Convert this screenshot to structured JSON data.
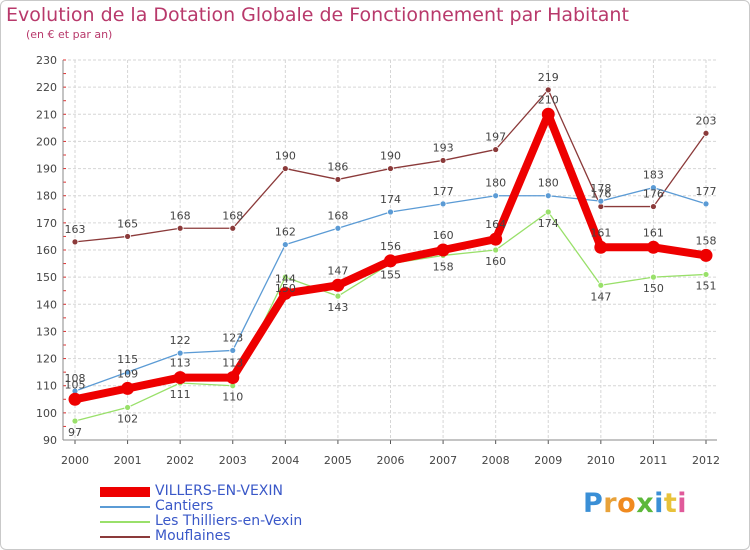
{
  "chart_data": {
    "type": "line",
    "title": "Evolution de la Dotation Globale de Fonctionnement par Habitant",
    "subtitle": "(en € et par an)",
    "xlabel": "",
    "ylabel": "",
    "categories": [
      "2000",
      "2001",
      "2002",
      "2003",
      "2004",
      "2005",
      "2006",
      "2007",
      "2008",
      "2009",
      "2010",
      "2011",
      "2012"
    ],
    "ylim": [
      90,
      230
    ],
    "yticks": [
      90,
      100,
      110,
      120,
      130,
      140,
      150,
      160,
      170,
      180,
      190,
      200,
      210,
      220,
      230
    ],
    "grid": true,
    "legend_position": "bottom-left",
    "series": [
      {
        "name": "VILLERS-EN-VEXIN",
        "color": "#ee0000",
        "values": [
          105,
          109,
          113,
          113,
          144,
          147,
          156,
          160,
          164,
          210,
          161,
          161,
          158
        ],
        "labels": [
          "105",
          "109",
          "113",
          "113",
          "144",
          "147",
          "156",
          "160",
          "164",
          "210",
          "161",
          "161",
          "158"
        ]
      },
      {
        "name": "Cantiers",
        "color": "#5b9bd5",
        "values": [
          108,
          115,
          122,
          123,
          162,
          168,
          174,
          177,
          180,
          180,
          178,
          183,
          177
        ],
        "labels": [
          "108",
          "115",
          "122",
          "123",
          "162",
          "168",
          "174",
          "177",
          "180",
          "180",
          "178",
          "183",
          "177"
        ]
      },
      {
        "name": "Les Thilliers-en-Vexin",
        "color": "#99e06a",
        "values": [
          97,
          102,
          111,
          110,
          150,
          143,
          155,
          158,
          160,
          174,
          147,
          150,
          151
        ],
        "labels": [
          "97",
          "102",
          "111",
          "110",
          "150",
          "143",
          "155",
          "158",
          "160",
          "174",
          "147",
          "150",
          "151"
        ]
      },
      {
        "name": "Mouflaines",
        "color": "#8b3a3a",
        "values": [
          163,
          165,
          168,
          168,
          190,
          186,
          190,
          193,
          197,
          219,
          176,
          176,
          203
        ],
        "labels": [
          "163",
          "165",
          "168",
          "168",
          "190",
          "186",
          "190",
          "193",
          "197",
          "219",
          "176",
          "176",
          "203"
        ]
      }
    ]
  },
  "logo": {
    "letters": [
      "P",
      "r",
      "o",
      "x",
      "i",
      "t",
      "i"
    ],
    "colors": [
      "#3a8fd6",
      "#e8a23a",
      "#f08a1f",
      "#5cb83a",
      "#3a8fd6",
      "#e8c23a",
      "#e05a9a"
    ]
  }
}
